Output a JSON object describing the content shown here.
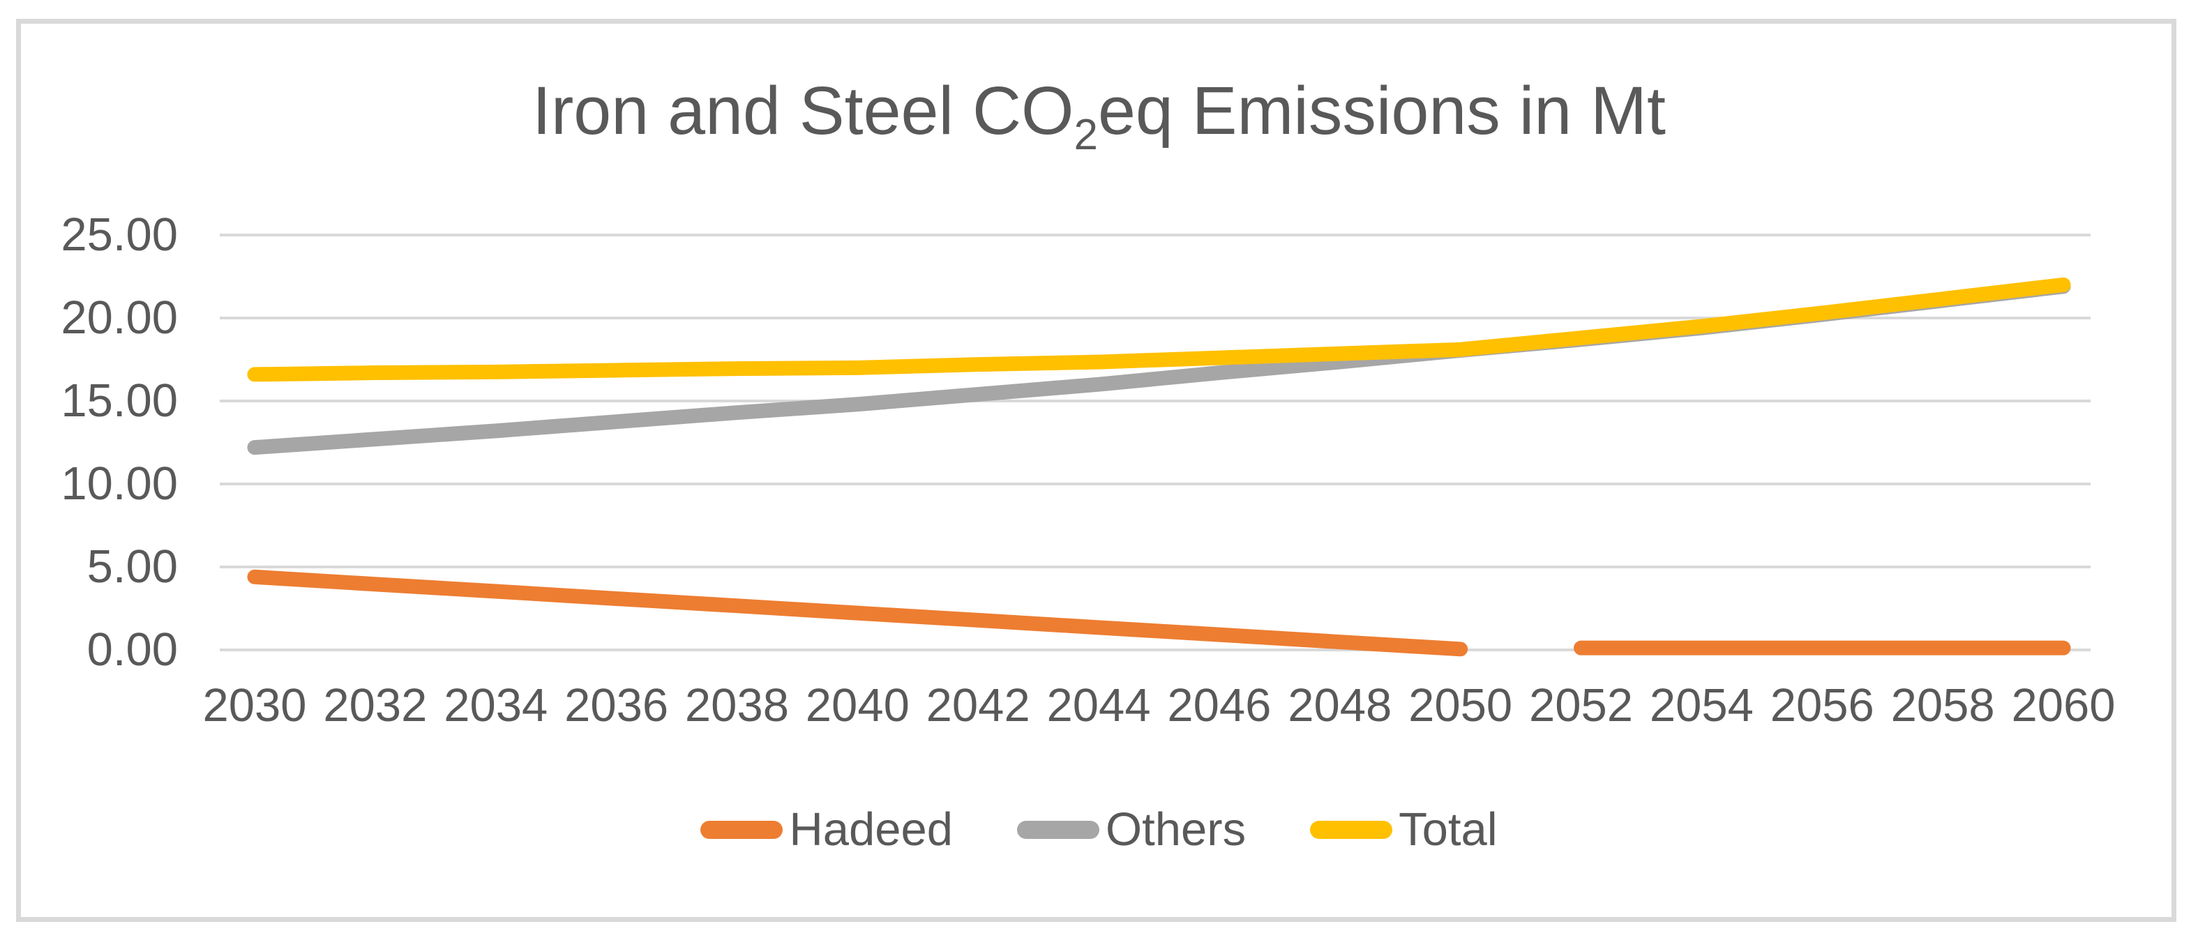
{
  "title": {
    "prefix": "Iron and Steel CO",
    "subscript": "2",
    "suffix": "eq Emissions in Mt"
  },
  "colors": {
    "hadeed": "#ED7D31",
    "others": "#A6A6A6",
    "total": "#FFC000",
    "gridline": "#D9D9D9",
    "border": "#D9D9D9",
    "text": "#595959"
  },
  "chart_data": {
    "type": "line",
    "title": "Iron and Steel CO2eq Emissions in Mt",
    "categories": [
      "2030",
      "2032",
      "2034",
      "2036",
      "2038",
      "2040",
      "2042",
      "2044",
      "2046",
      "2048",
      "2050",
      "2052",
      "2054",
      "2056",
      "2058",
      "2060"
    ],
    "y_ticks": [
      {
        "label": "25.00",
        "value": 25
      },
      {
        "label": "20.00",
        "value": 20
      },
      {
        "label": "15.00",
        "value": 15
      },
      {
        "label": "10.00",
        "value": 10
      },
      {
        "label": "5.00",
        "value": 5
      },
      {
        "label": "0.00",
        "value": 0
      }
    ],
    "ylim": [
      0,
      25
    ],
    "grid": true,
    "legend_position": "bottom",
    "series": [
      {
        "name": "Hadeed",
        "color": "#ED7D31",
        "note": "data gap between 2050 and 2052",
        "segments": [
          {
            "start_index": 0,
            "values": [
              4.4,
              3.96,
              3.53,
              3.09,
              2.66,
              2.22,
              1.79,
              1.35,
              0.92,
              0.48,
              0.05
            ]
          },
          {
            "start_index": 11,
            "values": [
              0.12,
              0.12,
              0.12,
              0.12,
              0.12
            ]
          }
        ]
      },
      {
        "name": "Others",
        "color": "#A6A6A6",
        "segments": [
          {
            "start_index": 0,
            "values": [
              12.2,
              12.7,
              13.2,
              13.75,
              14.3,
              14.8,
              15.4,
              16.0,
              16.7,
              17.35,
              18.05,
              18.7,
              19.4,
              20.2,
              21.05,
              21.9
            ]
          }
        ]
      },
      {
        "name": "Total",
        "color": "#FFC000",
        "segments": [
          {
            "start_index": 0,
            "values": [
              16.6,
              16.7,
              16.75,
              16.85,
              16.95,
              17.0,
              17.2,
              17.35,
              17.6,
              17.85,
              18.1,
              18.8,
              19.5,
              20.3,
              21.15,
              22.0
            ]
          }
        ]
      }
    ]
  }
}
